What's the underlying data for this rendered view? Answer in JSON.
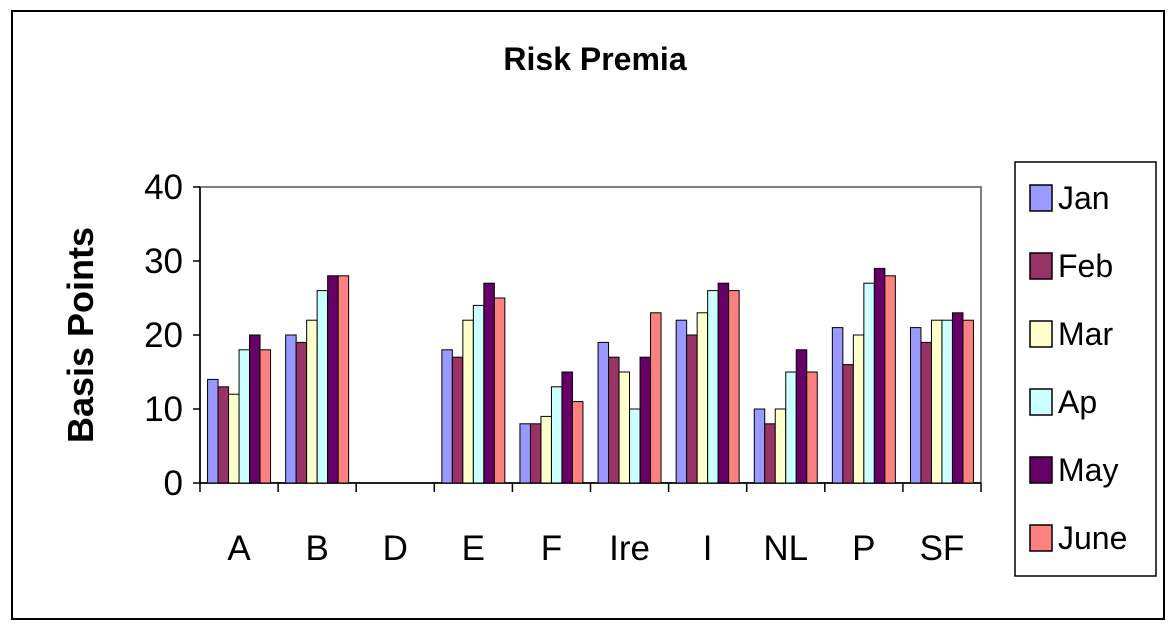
{
  "chart_data": {
    "type": "bar",
    "title": "Risk Premia",
    "ylabel": "Basis Points",
    "xlabel": "",
    "ylim": [
      0,
      40
    ],
    "yticks": [
      0,
      10,
      20,
      30,
      40
    ],
    "categories": [
      "A",
      "B",
      "D",
      "E",
      "F",
      "Ire",
      "I",
      "NL",
      "P",
      "SF"
    ],
    "legend_position": "right",
    "grid": false,
    "series": [
      {
        "name": "Jan",
        "color": "#9999ff",
        "values": [
          14,
          20,
          0,
          18,
          8,
          19,
          22,
          10,
          21,
          21
        ]
      },
      {
        "name": "Feb",
        "color": "#993366",
        "values": [
          13,
          19,
          0,
          17,
          8,
          17,
          20,
          8,
          16,
          19
        ]
      },
      {
        "name": "Mar",
        "color": "#ffffcc",
        "values": [
          12,
          22,
          0,
          22,
          9,
          15,
          23,
          10,
          20,
          22
        ]
      },
      {
        "name": "Ap",
        "color": "#ccffff",
        "values": [
          18,
          26,
          0,
          24,
          13,
          10,
          26,
          15,
          27,
          22
        ]
      },
      {
        "name": "May",
        "color": "#660066",
        "values": [
          20,
          28,
          0,
          27,
          15,
          17,
          27,
          18,
          29,
          23
        ]
      },
      {
        "name": "June",
        "color": "#ff8080",
        "values": [
          18,
          28,
          0,
          25,
          11,
          23,
          26,
          15,
          28,
          22
        ]
      }
    ]
  }
}
